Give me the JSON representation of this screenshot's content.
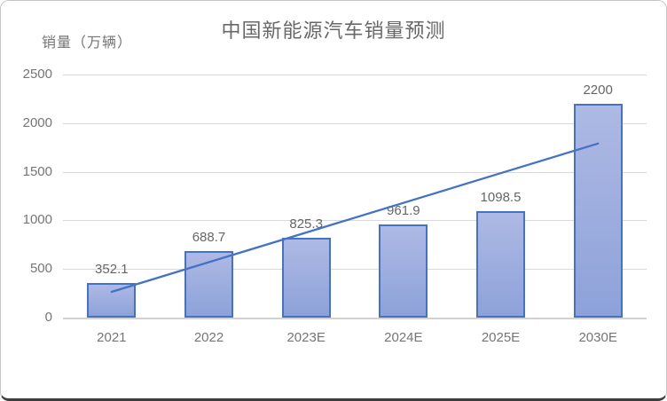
{
  "chart_data": {
    "type": "bar",
    "title": "中国新能源汽车销量预测",
    "ylabel": "销量（万辆）",
    "categories": [
      "2021",
      "2022",
      "2023E",
      "2024E",
      "2025E",
      "2030E"
    ],
    "series": [
      {
        "name": "sales-bars",
        "kind": "bar",
        "values": [
          352.1,
          688.7,
          825.3,
          961.9,
          1098.5,
          2200
        ],
        "data_labels": [
          "352.1",
          "688.7",
          "825.3",
          "961.9",
          "1098.5",
          "2200"
        ]
      },
      {
        "name": "linear-trendline",
        "kind": "line",
        "values": [
          265,
          570,
          875,
          1180,
          1485,
          1790
        ]
      }
    ],
    "ylim": [
      0,
      2500
    ],
    "yticks": [
      0,
      500,
      1000,
      1500,
      2000,
      2500
    ],
    "grid": true,
    "legend": "none",
    "colors": {
      "bar_fill_top": "#aeb9e4",
      "bar_fill_bottom": "#8da2d9",
      "bar_border": "#4472c4",
      "line": "#4472c4",
      "grid": "#d9d9d9",
      "axis_line": "#d2d2d2",
      "title_text": "#686868",
      "tick_text": "#757575",
      "label_text": "#666666",
      "card_border": "#c6c6c6",
      "card_border_bottom": "#3d3d3d"
    }
  }
}
